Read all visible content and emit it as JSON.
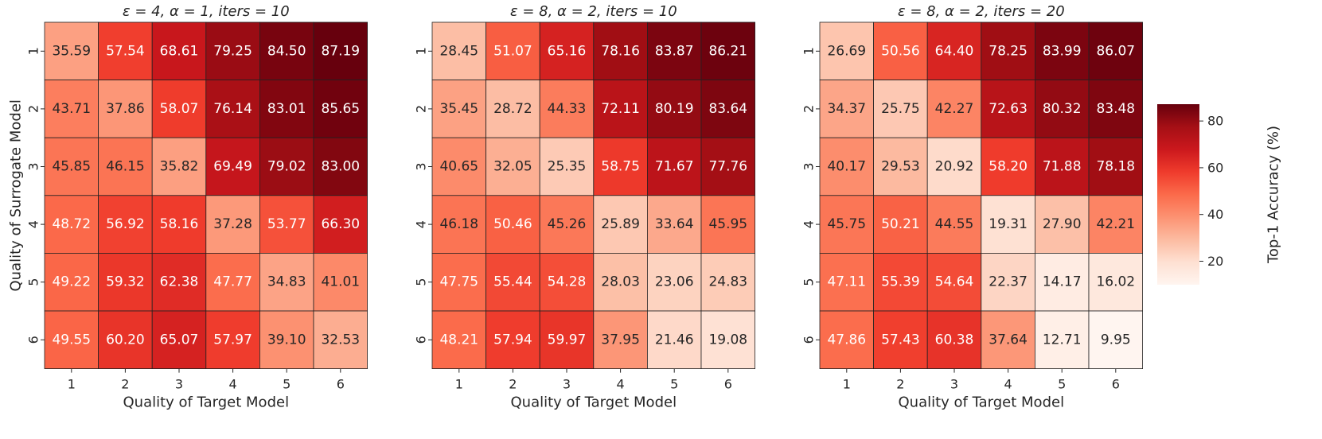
{
  "chart_data": [
    {
      "type": "heatmap",
      "title": "ε = 4, α = 1, iters = 10",
      "xlabel": "Quality of Target Model",
      "ylabel": "Quality of Surrogate Model",
      "x_categories": [
        "1",
        "2",
        "3",
        "4",
        "5",
        "6"
      ],
      "y_categories": [
        "1",
        "2",
        "3",
        "4",
        "5",
        "6"
      ],
      "values": [
        [
          35.59,
          57.54,
          68.61,
          79.25,
          84.5,
          87.19
        ],
        [
          43.71,
          37.86,
          58.07,
          76.14,
          83.01,
          85.65
        ],
        [
          45.85,
          46.15,
          35.82,
          69.49,
          79.02,
          83.0
        ],
        [
          48.72,
          56.92,
          58.16,
          37.28,
          53.77,
          66.3
        ],
        [
          49.22,
          59.32,
          62.38,
          47.77,
          34.83,
          41.01
        ],
        [
          49.55,
          60.2,
          65.07,
          57.97,
          39.1,
          32.53
        ]
      ],
      "labels": [
        [
          "35.59",
          "57.54",
          "68.61",
          "79.25",
          "84.50",
          "87.19"
        ],
        [
          "43.71",
          "37.86",
          "58.07",
          "76.14",
          "83.01",
          "85.65"
        ],
        [
          "45.85",
          "46.15",
          "35.82",
          "69.49",
          "79.02",
          "83.00"
        ],
        [
          "48.72",
          "56.92",
          "58.16",
          "37.28",
          "53.77",
          "66.30"
        ],
        [
          "49.22",
          "59.32",
          "62.38",
          "47.77",
          "34.83",
          "41.01"
        ],
        [
          "49.55",
          "60.20",
          "65.07",
          "57.97",
          "39.10",
          "32.53"
        ]
      ]
    },
    {
      "type": "heatmap",
      "title": "ε = 8, α = 2, iters = 10",
      "xlabel": "Quality of Target Model",
      "ylabel": "",
      "x_categories": [
        "1",
        "2",
        "3",
        "4",
        "5",
        "6"
      ],
      "y_categories": [
        "1",
        "2",
        "3",
        "4",
        "5",
        "6"
      ],
      "values": [
        [
          28.45,
          51.07,
          65.16,
          78.16,
          83.87,
          86.21
        ],
        [
          35.45,
          28.72,
          44.33,
          72.11,
          80.19,
          83.64
        ],
        [
          40.65,
          32.05,
          25.35,
          58.75,
          71.67,
          77.76
        ],
        [
          46.18,
          50.46,
          45.26,
          25.89,
          33.64,
          45.95
        ],
        [
          47.75,
          55.44,
          54.28,
          28.03,
          23.06,
          24.83
        ],
        [
          48.21,
          57.94,
          59.97,
          37.95,
          21.46,
          19.08
        ]
      ],
      "labels": [
        [
          "28.45",
          "51.07",
          "65.16",
          "78.16",
          "83.87",
          "86.21"
        ],
        [
          "35.45",
          "28.72",
          "44.33",
          "72.11",
          "80.19",
          "83.64"
        ],
        [
          "40.65",
          "32.05",
          "25.35",
          "58.75",
          "71.67",
          "77.76"
        ],
        [
          "46.18",
          "50.46",
          "45.26",
          "25.89",
          "33.64",
          "45.95"
        ],
        [
          "47.75",
          "55.44",
          "54.28",
          "28.03",
          "23.06",
          "24.83"
        ],
        [
          "48.21",
          "57.94",
          "59.97",
          "37.95",
          "21.46",
          "19.08"
        ]
      ]
    },
    {
      "type": "heatmap",
      "title": "ε = 8, α = 2, iters = 20",
      "xlabel": "Quality of Target Model",
      "ylabel": "",
      "x_categories": [
        "1",
        "2",
        "3",
        "4",
        "5",
        "6"
      ],
      "y_categories": [
        "1",
        "2",
        "3",
        "4",
        "5",
        "6"
      ],
      "values": [
        [
          26.69,
          50.56,
          64.4,
          78.25,
          83.99,
          86.07
        ],
        [
          34.37,
          25.75,
          42.27,
          72.63,
          80.32,
          83.48
        ],
        [
          40.17,
          29.53,
          20.92,
          58.2,
          71.88,
          78.18
        ],
        [
          45.75,
          50.21,
          44.55,
          19.31,
          27.9,
          42.21
        ],
        [
          47.11,
          55.39,
          54.64,
          22.37,
          14.17,
          16.02
        ],
        [
          47.86,
          57.43,
          60.38,
          37.64,
          12.71,
          9.95
        ]
      ],
      "labels": [
        [
          "26.69",
          "50.56",
          "64.40",
          "78.25",
          "83.99",
          "86.07"
        ],
        [
          "34.37",
          "25.75",
          "42.27",
          "72.63",
          "80.32",
          "83.48"
        ],
        [
          "40.17",
          "29.53",
          "20.92",
          "58.20",
          "71.88",
          "78.18"
        ],
        [
          "45.75",
          "50.21",
          "44.55",
          "19.31",
          "27.90",
          "42.21"
        ],
        [
          "47.11",
          "55.39",
          "54.64",
          "22.37",
          "14.17",
          "16.02"
        ],
        [
          "47.86",
          "57.43",
          "60.38",
          "37.64",
          "12.71",
          "9.95"
        ]
      ]
    }
  ],
  "colorbar": {
    "label": "Top-1 Accuracy (%)",
    "ticks": [
      {
        "value": 20,
        "label": "20"
      },
      {
        "value": 40,
        "label": "40"
      },
      {
        "value": 60,
        "label": "60"
      },
      {
        "value": 80,
        "label": "80"
      }
    ],
    "vmin": 9.95,
    "vmax": 87.19,
    "colormap": [
      "#fff5f0",
      "#fee0d2",
      "#fcbba1",
      "#fc9272",
      "#fb6a4a",
      "#ef3b2c",
      "#cb181d",
      "#a50f15",
      "#67000d"
    ]
  }
}
